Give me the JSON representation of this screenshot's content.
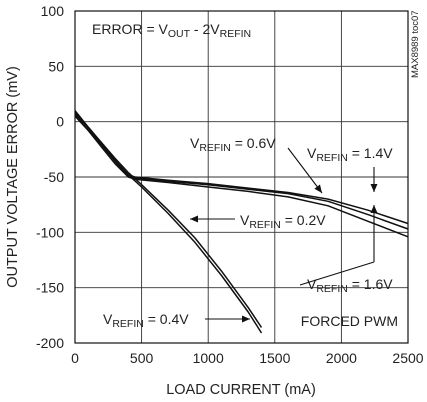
{
  "chart_data": {
    "type": "line",
    "xlabel": "LOAD CURRENT (mA)",
    "ylabel": "OUTPUT VOLTAGE ERROR (mV)",
    "xlim": [
      0,
      2500
    ],
    "ylim": [
      -200,
      100
    ],
    "xticks": [
      0,
      500,
      1000,
      1500,
      2000,
      2500
    ],
    "yticks": [
      100,
      50,
      0,
      -50,
      -100,
      -150,
      -200
    ],
    "grid": true,
    "formula": {
      "prefix": "ERROR = V",
      "sub1": "OUT",
      "mid": " - 2V",
      "sub2": "REFIN"
    },
    "mode_label": "FORCED PWM",
    "part_id": "MAX8989 toc07",
    "line_color": "#111111",
    "series": [
      {
        "name": "VREFIN = 0.2V",
        "label_prefix": "V",
        "label_sub": "REFIN",
        "label_value": " = 0.2V",
        "x": [
          0,
          100,
          200,
          300,
          400,
          500,
          700,
          900,
          1100,
          1300,
          1400
        ],
        "y": [
          8,
          -5,
          -19,
          -33,
          -46,
          -57,
          -80,
          -105,
          -135,
          -168,
          -186
        ]
      },
      {
        "name": "VREFIN = 0.4V",
        "label_prefix": "V",
        "label_sub": "REFIN",
        "label_value": " = 0.4V",
        "x": [
          0,
          100,
          200,
          300,
          400,
          500,
          700,
          900,
          1100,
          1300,
          1400
        ],
        "y": [
          5,
          -8,
          -21,
          -35,
          -48,
          -59,
          -83,
          -109,
          -139,
          -172,
          -191
        ]
      },
      {
        "name": "VREFIN = 0.6V",
        "label_prefix": "V",
        "label_sub": "REFIN",
        "label_value": " = 0.6V",
        "x": [
          0,
          100,
          200,
          300,
          400,
          450,
          700,
          1000,
          1300,
          1600,
          1900,
          2200,
          2500
        ],
        "y": [
          10,
          -5,
          -20,
          -35,
          -48,
          -50,
          -53,
          -56,
          -60,
          -64,
          -70,
          -80,
          -92
        ]
      },
      {
        "name": "VREFIN = 1.4V",
        "label_prefix": "V",
        "label_sub": "REFIN",
        "label_value": " = 1.4V",
        "x": [
          0,
          100,
          200,
          300,
          400,
          450,
          700,
          1000,
          1300,
          1600,
          1900,
          2200,
          2500
        ],
        "y": [
          9,
          -6,
          -21,
          -36,
          -49,
          -51,
          -54,
          -57,
          -61,
          -65,
          -72,
          -84,
          -97
        ]
      },
      {
        "name": "VREFIN = 1.6V",
        "label_prefix": "V",
        "label_sub": "REFIN",
        "label_value": " = 1.6V",
        "x": [
          0,
          100,
          200,
          300,
          400,
          450,
          700,
          1000,
          1300,
          1600,
          1900,
          2200,
          2500
        ],
        "y": [
          7,
          -8,
          -23,
          -38,
          -50,
          -52,
          -55,
          -59,
          -63,
          -68,
          -76,
          -90,
          -104
        ]
      }
    ]
  }
}
